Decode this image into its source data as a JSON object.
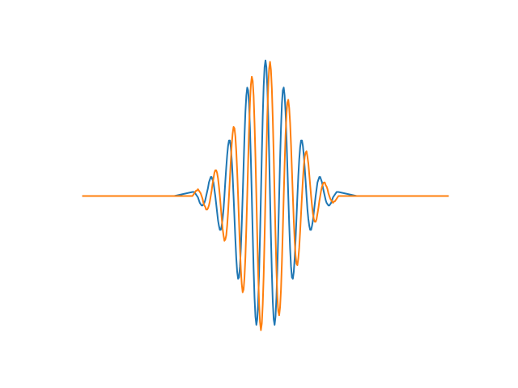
{
  "chart_data": {
    "type": "line",
    "x": [
      -5,
      -2.5,
      -2,
      -1.975,
      -1.95,
      -1.925,
      -1.9,
      -1.875,
      -1.85,
      -1.825,
      -1.8,
      -1.775,
      -1.75,
      -1.725,
      -1.7,
      -1.675,
      -1.65,
      -1.625,
      -1.6,
      -1.575,
      -1.55,
      -1.525,
      -1.5,
      -1.475,
      -1.45,
      -1.425,
      -1.4,
      -1.375,
      -1.35,
      -1.325,
      -1.3,
      -1.275,
      -1.25,
      -1.225,
      -1.2,
      -1.175,
      -1.15,
      -1.125,
      -1.1,
      -1.075,
      -1.05,
      -1.025,
      -1,
      -0.975,
      -0.95,
      -0.925,
      -0.9,
      -0.875,
      -0.85,
      -0.825,
      -0.8,
      -0.775,
      -0.75,
      -0.725,
      -0.7,
      -0.675,
      -0.65,
      -0.625,
      -0.6,
      -0.575,
      -0.55,
      -0.525,
      -0.5,
      -0.475,
      -0.45,
      -0.425,
      -0.4,
      -0.375,
      -0.35,
      -0.325,
      -0.3,
      -0.275,
      -0.25,
      -0.225,
      -0.2,
      -0.175,
      -0.15,
      -0.125,
      -0.1,
      -0.075,
      -0.05,
      -0.025,
      0,
      0.025,
      0.05,
      0.075,
      0.1,
      0.125,
      0.15,
      0.175,
      0.2,
      0.225,
      0.25,
      0.275,
      0.3,
      0.325,
      0.35,
      0.375,
      0.4,
      0.425,
      0.45,
      0.475,
      0.5,
      0.525,
      0.55,
      0.575,
      0.6,
      0.625,
      0.65,
      0.675,
      0.7,
      0.725,
      0.75,
      0.775,
      0.8,
      0.825,
      0.85,
      0.875,
      0.9,
      0.925,
      0.95,
      0.975,
      1,
      1.025,
      1.05,
      1.075,
      1.1,
      1.125,
      1.15,
      1.175,
      1.2,
      1.225,
      1.25,
      1.275,
      1.3,
      1.325,
      1.35,
      1.375,
      1.4,
      1.425,
      1.45,
      1.475,
      1.5,
      1.525,
      1.55,
      1.575,
      1.6,
      1.625,
      1.65,
      1.675,
      1.7,
      1.725,
      1.75,
      1.775,
      1.8,
      1.825,
      1.85,
      1.875,
      1.9,
      1.925,
      1.95,
      1.975,
      2,
      2.5,
      5
    ],
    "series": [
      {
        "color": "#1f77b4",
        "values": [
          0,
          0,
          0.03,
          0.03,
          0.03,
          0.02,
          0.01,
          0,
          -0.01,
          -0.03,
          -0.05,
          -0.06,
          -0.07,
          -0.07,
          -0.06,
          -0.05,
          -0.03,
          0,
          0.03,
          0.06,
          0.1,
          0.12,
          0.14,
          0.14,
          0.12,
          0.1,
          0.05,
          0,
          -0.06,
          -0.12,
          -0.18,
          -0.22,
          -0.25,
          -0.25,
          -0.22,
          -0.17,
          -0.1,
          0,
          0.11,
          0.21,
          0.3,
          0.37,
          0.41,
          0.41,
          0.36,
          0.27,
          0.15,
          0,
          -0.16,
          -0.32,
          -0.46,
          -0.56,
          -0.61,
          -0.6,
          -0.52,
          -0.39,
          -0.21,
          0,
          0.22,
          0.44,
          0.62,
          0.74,
          0.8,
          0.78,
          0.68,
          0.5,
          0.27,
          0,
          -0.28,
          -0.54,
          -0.75,
          -0.89,
          -0.95,
          -0.91,
          -0.78,
          -0.57,
          -0.3,
          0,
          0.31,
          0.59,
          0.81,
          0.95,
          1,
          0.95,
          0.81,
          0.59,
          0.31,
          0,
          -0.3,
          -0.57,
          -0.78,
          -0.91,
          -0.95,
          -0.89,
          -0.75,
          -0.54,
          -0.28,
          0,
          0.27,
          0.5,
          0.68,
          0.78,
          0.8,
          0.74,
          0.62,
          0.44,
          0.22,
          0,
          -0.21,
          -0.39,
          -0.52,
          -0.6,
          -0.61,
          -0.56,
          -0.46,
          -0.32,
          -0.16,
          0,
          0.15,
          0.27,
          0.36,
          0.41,
          0.41,
          0.37,
          0.3,
          0.21,
          0.11,
          0,
          -0.1,
          -0.17,
          -0.22,
          -0.25,
          -0.25,
          -0.22,
          -0.18,
          -0.12,
          -0.06,
          0,
          0.05,
          0.1,
          0.12,
          0.14,
          0.14,
          0.12,
          0.1,
          0.06,
          0.03,
          0,
          -0.03,
          -0.05,
          -0.06,
          -0.07,
          -0.07,
          -0.06,
          -0.05,
          -0.03,
          -0.01,
          0,
          0.01,
          0.02,
          0.03,
          0.03,
          0.03,
          0,
          0
        ]
      },
      {
        "color": "#ff7f0e",
        "values": [
          0,
          0,
          0,
          0.01,
          0.02,
          0.03,
          0.04,
          0.04,
          0.05,
          0.04,
          0.03,
          0.02,
          0,
          -0.02,
          -0.05,
          -0.07,
          -0.08,
          -0.1,
          -0.1,
          -0.09,
          -0.07,
          -0.04,
          0,
          0.04,
          0.09,
          0.13,
          0.17,
          0.19,
          0.19,
          0.17,
          0.13,
          0.07,
          0,
          -0.08,
          -0.16,
          -0.24,
          -0.29,
          -0.33,
          -0.32,
          -0.29,
          -0.22,
          -0.12,
          0,
          0.13,
          0.26,
          0.38,
          0.46,
          0.51,
          0.5,
          0.44,
          0.33,
          0.18,
          0,
          -0.19,
          -0.38,
          -0.54,
          -0.65,
          -0.71,
          -0.69,
          -0.6,
          -0.45,
          -0.24,
          0,
          0.25,
          0.49,
          0.69,
          0.82,
          0.88,
          0.85,
          0.74,
          0.54,
          0.29,
          0,
          -0.3,
          -0.57,
          -0.79,
          -0.93,
          -0.99,
          -0.94,
          -0.8,
          -0.59,
          -0.31,
          0,
          0.31,
          0.59,
          0.8,
          0.94,
          0.99,
          0.93,
          0.79,
          0.57,
          0.3,
          0,
          -0.29,
          -0.54,
          -0.74,
          -0.85,
          -0.88,
          -0.82,
          -0.69,
          -0.49,
          -0.25,
          0,
          0.24,
          0.45,
          0.6,
          0.69,
          0.71,
          0.65,
          0.54,
          0.38,
          0.19,
          0,
          -0.18,
          -0.33,
          -0.44,
          -0.5,
          -0.51,
          -0.46,
          -0.38,
          -0.26,
          -0.13,
          0,
          0.12,
          0.22,
          0.29,
          0.32,
          0.33,
          0.29,
          0.24,
          0.16,
          0.08,
          0,
          -0.07,
          -0.13,
          -0.17,
          -0.19,
          -0.19,
          -0.17,
          -0.13,
          -0.09,
          -0.04,
          0,
          0.04,
          0.07,
          0.09,
          0.1,
          0.1,
          0.08,
          0.07,
          0.05,
          0.02,
          0,
          -0.02,
          -0.03,
          -0.04,
          -0.05,
          -0.04,
          -0.04,
          -0.03,
          -0.02,
          -0.01,
          0,
          0,
          0
        ]
      }
    ],
    "xlim": [
      -5.5,
      5.5
    ],
    "ylim": [
      -1.1,
      1.1
    ]
  }
}
